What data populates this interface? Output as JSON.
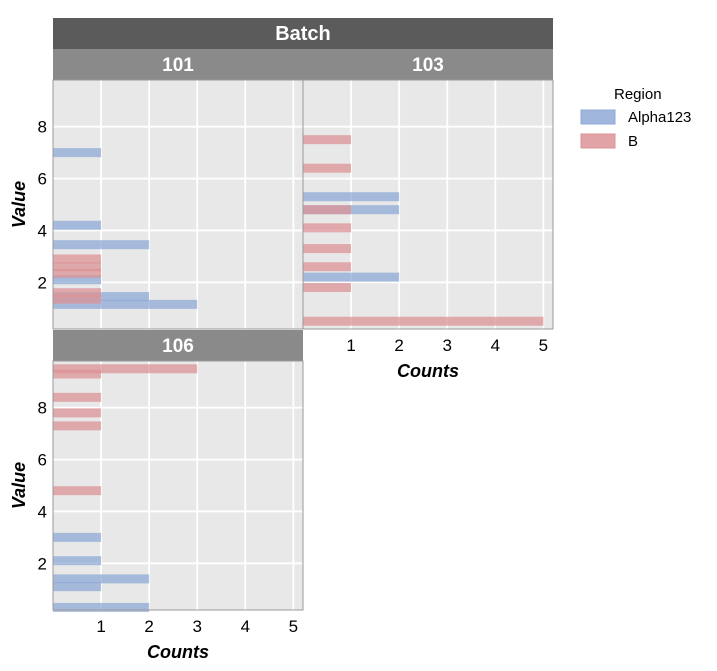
{
  "chart_data": {
    "type": "bar",
    "orientation": "horizontal",
    "facet_title": "Batch",
    "legend": {
      "title": "Region",
      "entries": [
        {
          "name": "Alpha123",
          "color": "#8fa9d6"
        },
        {
          "name": "B",
          "color": "#dc9396"
        }
      ],
      "placement": "right"
    },
    "colors": {
      "Alpha123": "#8fa9d6",
      "B": "#dc9396",
      "panel_bg": "#e8e8e8",
      "strip_dark": "#5b5b5b",
      "strip_light": "#8a8a8a"
    },
    "xlabel": "Counts",
    "ylabel": "Value",
    "xlim": [
      0,
      5.2
    ],
    "ylim": [
      0.2,
      9.8
    ],
    "x_ticks": [
      1,
      2,
      3,
      4,
      5
    ],
    "y_ticks": [
      2,
      4,
      6,
      8
    ],
    "grid": true,
    "panels": [
      {
        "label": "101",
        "series": [
          {
            "name": "Alpha123",
            "bars": [
              {
                "y": 7.0,
                "count": 1
              },
              {
                "y": 4.2,
                "count": 1
              },
              {
                "y": 3.45,
                "count": 2
              },
              {
                "y": 2.1,
                "count": 1
              },
              {
                "y": 1.45,
                "count": 2
              },
              {
                "y": 1.15,
                "count": 3
              }
            ]
          },
          {
            "name": "B",
            "bars": [
              {
                "y": 2.9,
                "count": 1
              },
              {
                "y": 2.6,
                "count": 1
              },
              {
                "y": 2.35,
                "count": 1
              },
              {
                "y": 1.6,
                "count": 1
              },
              {
                "y": 1.35,
                "count": 1
              }
            ]
          }
        ]
      },
      {
        "label": "103",
        "series": [
          {
            "name": "Alpha123",
            "bars": [
              {
                "y": 5.3,
                "count": 2
              },
              {
                "y": 4.8,
                "count": 2
              },
              {
                "y": 2.2,
                "count": 2
              }
            ]
          },
          {
            "name": "B",
            "bars": [
              {
                "y": 7.5,
                "count": 1
              },
              {
                "y": 6.4,
                "count": 1
              },
              {
                "y": 4.8,
                "count": 1
              },
              {
                "y": 4.1,
                "count": 1
              },
              {
                "y": 3.3,
                "count": 1
              },
              {
                "y": 2.6,
                "count": 1
              },
              {
                "y": 1.8,
                "count": 1
              },
              {
                "y": 0.5,
                "count": 5
              }
            ]
          }
        ]
      },
      {
        "label": "106",
        "series": [
          {
            "name": "Alpha123",
            "bars": [
              {
                "y": 3.0,
                "count": 1
              },
              {
                "y": 2.1,
                "count": 1
              },
              {
                "y": 1.4,
                "count": 2
              },
              {
                "y": 1.1,
                "count": 1
              },
              {
                "y": 0.3,
                "count": 2
              }
            ]
          },
          {
            "name": "B",
            "bars": [
              {
                "y": 9.5,
                "count": 3
              },
              {
                "y": 9.3,
                "count": 1
              },
              {
                "y": 8.4,
                "count": 1
              },
              {
                "y": 7.8,
                "count": 1
              },
              {
                "y": 7.3,
                "count": 1
              },
              {
                "y": 4.8,
                "count": 1
              }
            ]
          }
        ]
      }
    ]
  }
}
